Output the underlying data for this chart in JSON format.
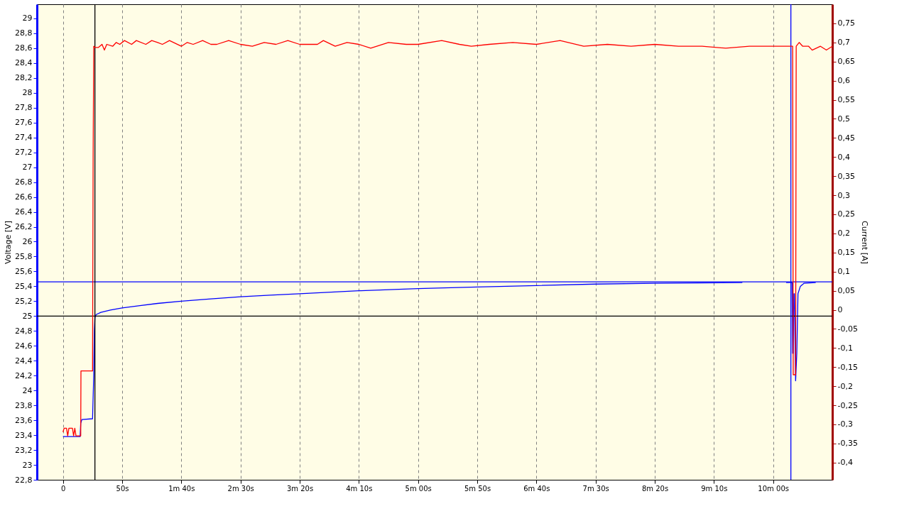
{
  "chart_data": {
    "type": "line",
    "xlabel": null,
    "ylabel": "Voltage  [V]",
    "y2label": "Current  [A]",
    "xlim": [
      -22,
      650
    ],
    "xticks": [
      {
        "value": 0,
        "label": "0"
      },
      {
        "value": 50,
        "label": "50s"
      },
      {
        "value": 100,
        "label": "1m 40s"
      },
      {
        "value": 150,
        "label": "2m 30s"
      },
      {
        "value": 200,
        "label": "3m 20s"
      },
      {
        "value": 250,
        "label": "4m 10s"
      },
      {
        "value": 300,
        "label": "5m 00s"
      },
      {
        "value": 350,
        "label": "5m 50s"
      },
      {
        "value": 400,
        "label": "6m 40s"
      },
      {
        "value": 450,
        "label": "7m 30s"
      },
      {
        "value": 500,
        "label": "8m 20s"
      },
      {
        "value": 550,
        "label": "9m 10s"
      },
      {
        "value": 600,
        "label": "10m 00s"
      }
    ],
    "ylim": [
      22.8,
      29.19
    ],
    "yticks": [
      {
        "value": 22.8,
        "label": "22,8"
      },
      {
        "value": 23,
        "label": "23"
      },
      {
        "value": 23.2,
        "label": "23,2"
      },
      {
        "value": 23.4,
        "label": "23,4"
      },
      {
        "value": 23.6,
        "label": "23,6"
      },
      {
        "value": 23.8,
        "label": "23,8"
      },
      {
        "value": 24,
        "label": "24"
      },
      {
        "value": 24.2,
        "label": "24,2"
      },
      {
        "value": 24.4,
        "label": "24,4"
      },
      {
        "value": 24.6,
        "label": "24,6"
      },
      {
        "value": 24.8,
        "label": "24,8"
      },
      {
        "value": 25,
        "label": "25"
      },
      {
        "value": 25.2,
        "label": "25,2"
      },
      {
        "value": 25.4,
        "label": "25,4"
      },
      {
        "value": 25.6,
        "label": "25,6"
      },
      {
        "value": 25.8,
        "label": "25,8"
      },
      {
        "value": 26,
        "label": "26"
      },
      {
        "value": 26.2,
        "label": "26,2"
      },
      {
        "value": 26.4,
        "label": "26,4"
      },
      {
        "value": 26.6,
        "label": "26,6"
      },
      {
        "value": 26.8,
        "label": "26,8"
      },
      {
        "value": 27,
        "label": "27"
      },
      {
        "value": 27.2,
        "label": "27,2"
      },
      {
        "value": 27.4,
        "label": "27,4"
      },
      {
        "value": 27.6,
        "label": "27,6"
      },
      {
        "value": 27.8,
        "label": "27,8"
      },
      {
        "value": 28,
        "label": "28"
      },
      {
        "value": 28.2,
        "label": "28,2"
      },
      {
        "value": 28.4,
        "label": "28,4"
      },
      {
        "value": 28.6,
        "label": "28,6"
      },
      {
        "value": 28.8,
        "label": "28,8"
      },
      {
        "value": 29,
        "label": "29"
      }
    ],
    "y2lim": [
      -0.445,
      0.8
    ],
    "y2ticks": [
      {
        "value": -0.4,
        "label": "-0,4"
      },
      {
        "value": -0.35,
        "label": "-0,35"
      },
      {
        "value": -0.3,
        "label": "-0,3"
      },
      {
        "value": -0.25,
        "label": "-0,25"
      },
      {
        "value": -0.2,
        "label": "-0,2"
      },
      {
        "value": -0.15,
        "label": "-0,15"
      },
      {
        "value": -0.1,
        "label": "-0,1"
      },
      {
        "value": -0.05,
        "label": "-0,05"
      },
      {
        "value": 0,
        "label": "0"
      },
      {
        "value": 0.05,
        "label": "0,05"
      },
      {
        "value": 0.1,
        "label": "0,1"
      },
      {
        "value": 0.15,
        "label": "0,15"
      },
      {
        "value": 0.2,
        "label": "0,2"
      },
      {
        "value": 0.25,
        "label": "0,25"
      },
      {
        "value": 0.3,
        "label": "0,3"
      },
      {
        "value": 0.35,
        "label": "0,35"
      },
      {
        "value": 0.4,
        "label": "0,4"
      },
      {
        "value": 0.45,
        "label": "0,45"
      },
      {
        "value": 0.5,
        "label": "0,5"
      },
      {
        "value": 0.55,
        "label": "0,55"
      },
      {
        "value": 0.6,
        "label": "0,6"
      },
      {
        "value": 0.65,
        "label": "0,65"
      },
      {
        "value": 0.7,
        "label": "0,7"
      },
      {
        "value": 0.75,
        "label": "0,75"
      }
    ],
    "grid": "x",
    "marker": "none",
    "line_style": "solid",
    "ref_lines": [
      {
        "axis": "x",
        "value": 27,
        "color": "#000000"
      },
      {
        "axis": "x",
        "value": 615,
        "color": "#0000ff"
      },
      {
        "axis": "y",
        "value": 25.46,
        "color": "#0000ff"
      },
      {
        "axis": "y",
        "value": 25.0,
        "color": "#000000"
      }
    ],
    "series": [
      {
        "color": "#0000ff",
        "x": [
          0,
          14.5,
          15,
          16,
          25,
          26,
          26.5,
          27,
          28,
          32,
          40,
          50,
          65,
          80,
          100,
          125,
          150,
          175,
          200,
          250,
          300,
          350,
          400,
          450,
          500,
          574,
          590,
          611,
          616,
          616.5,
          617,
          617.5,
          618,
          619,
          620,
          621,
          623,
          626,
          636
        ],
        "values": [
          23.38,
          23.38,
          23.56,
          23.61,
          23.62,
          24.2,
          24.8,
          24.98,
          25.02,
          25.05,
          25.08,
          25.11,
          25.14,
          25.17,
          25.2,
          25.23,
          25.26,
          25.28,
          25.3,
          25.34,
          25.37,
          25.39,
          25.41,
          25.43,
          25.44,
          25.45,
          null,
          25.45,
          25.45,
          24.5,
          24.5,
          25.3,
          25.3,
          24.13,
          24.5,
          25.3,
          25.4,
          25.44,
          25.45
        ]
      },
      {
        "color": "#ff0000",
        "axis": "y2",
        "x": [
          0,
          1,
          3,
          4,
          5,
          8,
          9,
          10,
          11,
          15,
          15.2,
          25,
          25.5,
          26,
          27,
          30,
          33,
          35,
          37,
          42,
          45,
          48,
          52,
          58,
          62,
          70,
          75,
          80,
          84,
          90,
          100,
          105,
          110,
          118,
          125,
          130,
          140,
          150,
          160,
          170,
          180,
          190,
          200,
          215,
          220,
          230,
          240,
          250,
          260,
          275,
          290,
          300,
          320,
          335,
          345,
          360,
          380,
          400,
          420,
          440,
          460,
          480,
          500,
          520,
          540,
          560,
          580,
          600,
          615,
          616.5,
          617,
          619,
          619.5,
          622,
          625,
          630,
          633,
          640,
          645,
          650
        ],
        "values": [
          -0.32,
          -0.31,
          -0.31,
          -0.33,
          -0.31,
          -0.31,
          -0.33,
          -0.31,
          -0.33,
          -0.33,
          -0.16,
          -0.16,
          0.4,
          0.69,
          0.687,
          0.687,
          0.695,
          0.68,
          0.695,
          0.69,
          0.7,
          0.695,
          0.705,
          0.695,
          0.705,
          0.695,
          0.705,
          0.7,
          0.695,
          0.705,
          0.69,
          0.7,
          0.695,
          0.705,
          0.695,
          0.695,
          0.705,
          0.695,
          0.69,
          0.7,
          0.695,
          0.705,
          0.695,
          0.695,
          0.705,
          0.69,
          0.7,
          0.695,
          0.685,
          0.7,
          0.695,
          0.695,
          0.705,
          0.695,
          0.69,
          0.695,
          0.7,
          0.695,
          0.705,
          0.69,
          0.695,
          0.69,
          0.695,
          0.69,
          0.69,
          0.685,
          0.69,
          0.69,
          0.69,
          0.69,
          -0.17,
          -0.17,
          0.69,
          0.7,
          0.69,
          0.69,
          0.68,
          0.69,
          0.68,
          0.69
        ]
      }
    ]
  }
}
